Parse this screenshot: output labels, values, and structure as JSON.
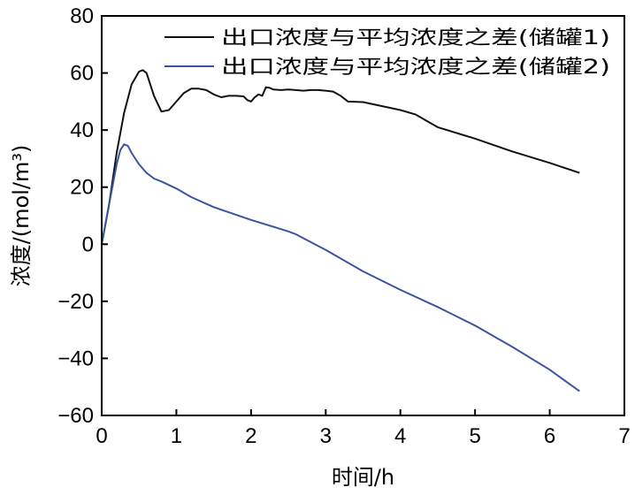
{
  "chart_data": {
    "type": "line",
    "title": "",
    "xlabel": "时间/h",
    "ylabel": "浓度/(mol/m³)",
    "xlim": [
      0,
      7
    ],
    "ylim": [
      -60,
      80
    ],
    "xticks": [
      0,
      1,
      2,
      3,
      4,
      5,
      6,
      7
    ],
    "yticks": [
      -60,
      -40,
      -20,
      0,
      20,
      40,
      60,
      80
    ],
    "xtick_labels": [
      "0",
      "1",
      "2",
      "3",
      "4",
      "5",
      "6",
      "7"
    ],
    "ytick_labels": [
      "−60",
      "−40",
      "−20",
      "0",
      "20",
      "40",
      "60",
      "80"
    ],
    "grid": false,
    "legend_position": "top-right",
    "series": [
      {
        "name": "出口浓度与平均浓度之差(储罐1)",
        "color": "#111111",
        "x": [
          0,
          0.1,
          0.2,
          0.3,
          0.4,
          0.5,
          0.55,
          0.6,
          0.7,
          0.8,
          0.9,
          1.0,
          1.1,
          1.2,
          1.3,
          1.4,
          1.5,
          1.6,
          1.7,
          1.8,
          1.9,
          1.95,
          2.0,
          2.05,
          2.1,
          2.15,
          2.2,
          2.25,
          2.3,
          2.4,
          2.5,
          2.6,
          2.7,
          2.8,
          2.9,
          3.0,
          3.1,
          3.2,
          3.3,
          3.5,
          4.0,
          4.2,
          4.5,
          5.0,
          5.5,
          6.0,
          6.4
        ],
        "y": [
          0,
          14,
          32,
          46,
          56,
          60.5,
          61,
          60,
          52,
          46.5,
          47,
          50,
          53,
          54.5,
          54.5,
          54,
          52.5,
          51.5,
          52,
          52,
          51.8,
          50.5,
          50,
          51.5,
          52.5,
          52,
          55,
          54.8,
          54.2,
          54,
          54.2,
          54,
          53.8,
          54,
          54,
          53.8,
          53.5,
          52,
          50,
          49.8,
          47,
          45.5,
          41,
          37,
          32.5,
          28.5,
          25
        ]
      },
      {
        "name": "出口浓度与平均浓度之差(储罐2)",
        "color": "#3a55a0",
        "x": [
          0,
          0.1,
          0.2,
          0.25,
          0.3,
          0.35,
          0.4,
          0.5,
          0.6,
          0.7,
          0.8,
          1.0,
          1.2,
          1.5,
          2.0,
          2.5,
          2.6,
          3.0,
          3.5,
          4.0,
          4.5,
          5.0,
          5.5,
          6.0,
          6.4
        ],
        "y": [
          0,
          14,
          28,
          33,
          35,
          34.5,
          32,
          28,
          25,
          23,
          22,
          19.5,
          16.5,
          13,
          8.5,
          4.5,
          3.5,
          -2,
          -9.5,
          -16,
          -22,
          -28.5,
          -36,
          -44,
          -51.5
        ]
      }
    ]
  }
}
